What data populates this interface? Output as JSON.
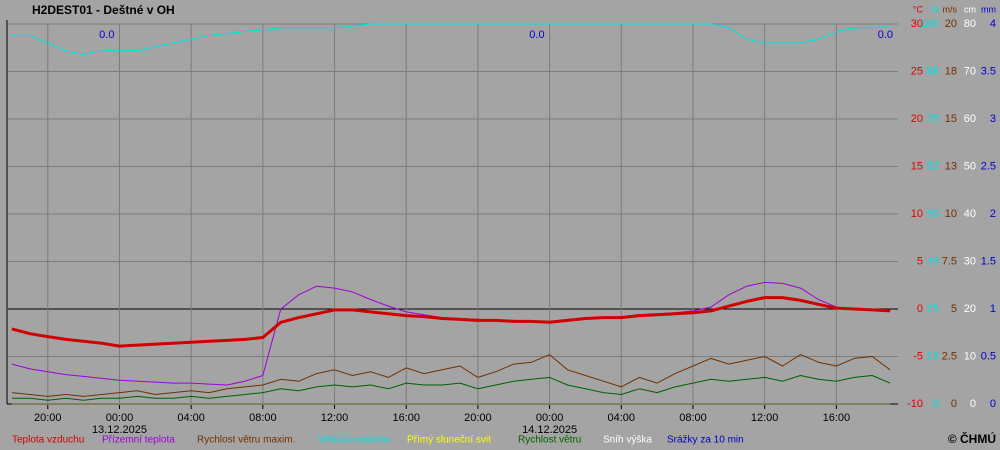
{
  "chart_data": {
    "type": "line",
    "title": "H2DEST01 - Deštné v OH",
    "xlim": [
      -6.22,
      43.44
    ],
    "xticks": [
      {
        "value": -4,
        "label": "20:00"
      },
      {
        "value": 0,
        "label": "00:00"
      },
      {
        "value": 4,
        "label": "04:00"
      },
      {
        "value": 8,
        "label": "08:00"
      },
      {
        "value": 12,
        "label": "12:00"
      },
      {
        "value": 16,
        "label": "16:00"
      },
      {
        "value": 20,
        "label": "20:00"
      },
      {
        "value": 24,
        "label": "00:00"
      },
      {
        "value": 28,
        "label": "04:00"
      },
      {
        "value": 32,
        "label": "08:00"
      },
      {
        "value": 36,
        "label": "12:00"
      },
      {
        "value": 40,
        "label": "16:00"
      }
    ],
    "date_labels": [
      {
        "value": 0,
        "label": "13.12.2025"
      },
      {
        "value": 24,
        "label": "14.12.2025"
      }
    ],
    "axes": [
      {
        "unit": "°C",
        "color": "#e00000",
        "lim": [
          -10,
          30
        ],
        "ticks": [
          30,
          25,
          20,
          15,
          10,
          5,
          0,
          -5,
          -10
        ]
      },
      {
        "unit": "%",
        "color": "#00e0e0",
        "lim": [
          0,
          100
        ],
        "ticks": [
          100,
          {
            "value": 87.5,
            "label": "88"
          },
          75,
          {
            "value": 62.5,
            "label": "63"
          },
          50,
          {
            "value": 37.5,
            "label": "38"
          },
          25,
          {
            "value": 12.5,
            "label": "13"
          },
          0
        ]
      },
      {
        "unit": "m/s",
        "color": "#703000",
        "lim": [
          0,
          20
        ],
        "ticks": [
          20,
          {
            "value": 17.5,
            "label": "18"
          },
          15,
          {
            "value": 12.5,
            "label": "13"
          },
          10,
          7.5,
          5,
          2.5,
          0
        ]
      },
      {
        "unit": "cm",
        "color": "#ffffff",
        "lim": [
          0,
          80
        ],
        "ticks": [
          80,
          70,
          60,
          50,
          40,
          30,
          20,
          10,
          0
        ]
      },
      {
        "unit": "mm",
        "color": "#0000d0",
        "lim": [
          0,
          4
        ],
        "ticks": [
          4,
          3.5,
          3,
          2.5,
          2,
          1.5,
          1,
          0.5,
          0
        ]
      }
    ],
    "x": [
      -6,
      -5,
      -4,
      -3,
      -2,
      -1,
      0,
      1,
      2,
      3,
      4,
      5,
      6,
      7,
      8,
      9,
      10,
      11,
      12,
      13,
      14,
      15,
      16,
      17,
      18,
      19,
      20,
      21,
      22,
      23,
      24,
      25,
      26,
      27,
      28,
      29,
      30,
      31,
      32,
      33,
      34,
      35,
      36,
      37,
      38,
      39,
      40,
      41,
      42,
      43
    ],
    "series": [
      {
        "name": "Teplota vzduchu",
        "color": "#d00000",
        "axis": 0,
        "width": 3,
        "values": [
          -2.1,
          -2.6,
          -2.9,
          -3.2,
          -3.4,
          -3.6,
          -3.9,
          -3.8,
          -3.7,
          -3.6,
          -3.5,
          -3.4,
          -3.3,
          -3.2,
          -3.0,
          -1.4,
          -0.9,
          -0.5,
          -0.1,
          -0.1,
          -0.3,
          -0.5,
          -0.7,
          -0.8,
          -1.0,
          -1.1,
          -1.2,
          -1.2,
          -1.3,
          -1.3,
          -1.4,
          -1.2,
          -1.0,
          -0.9,
          -0.9,
          -0.7,
          -0.6,
          -0.5,
          -0.4,
          -0.2,
          0.3,
          0.8,
          1.2,
          1.2,
          0.9,
          0.5,
          0.1,
          0.0,
          -0.1,
          -0.2
        ]
      },
      {
        "name": "Přízemní teplota",
        "color": "#a000d8",
        "axis": 0,
        "width": 1,
        "values": [
          -5.8,
          -6.3,
          -6.6,
          -6.9,
          -7.1,
          -7.3,
          -7.5,
          -7.6,
          -7.7,
          -7.8,
          -7.8,
          -7.9,
          -8.0,
          -7.6,
          -7.0,
          0.0,
          1.5,
          2.4,
          2.2,
          1.8,
          1.0,
          0.3,
          -0.3,
          -0.6,
          -0.9,
          -1.0,
          -1.1,
          -1.2,
          -1.2,
          -1.3,
          -1.3,
          -1.1,
          -1.0,
          -0.9,
          -0.8,
          -0.6,
          -0.5,
          -0.4,
          -0.2,
          0.2,
          1.5,
          2.4,
          2.8,
          2.7,
          2.2,
          1.0,
          0.2,
          0.0,
          -0.1,
          -0.2
        ]
      },
      {
        "name": "Rychlost větru maxim.",
        "color": "#703000",
        "axis": 2,
        "width": 1,
        "values": [
          0.6,
          0.5,
          0.4,
          0.5,
          0.4,
          0.5,
          0.6,
          0.7,
          0.5,
          0.6,
          0.7,
          0.6,
          0.8,
          0.9,
          1.0,
          1.3,
          1.2,
          1.6,
          1.8,
          1.5,
          1.7,
          1.4,
          1.9,
          1.6,
          1.8,
          2.0,
          1.4,
          1.7,
          2.1,
          2.2,
          2.6,
          1.8,
          1.5,
          1.2,
          0.9,
          1.4,
          1.1,
          1.6,
          2.0,
          2.4,
          2.1,
          2.3,
          2.5,
          2.0,
          2.6,
          2.2,
          2.0,
          2.4,
          2.5,
          1.8
        ]
      },
      {
        "name": "Vlhkost vzduchu",
        "color": "#00e0e0",
        "axis": 1,
        "width": 1,
        "values": [
          97,
          97,
          95,
          93,
          92,
          93,
          93,
          93,
          94,
          95,
          96,
          97,
          97.5,
          98,
          98.5,
          99,
          99,
          99,
          99,
          99.5,
          100,
          100,
          100,
          100,
          100,
          100,
          100,
          100,
          100,
          100,
          100,
          100,
          100,
          100,
          100,
          100,
          100,
          100,
          100,
          100,
          99,
          96,
          95,
          95,
          95,
          96,
          98,
          99,
          99,
          99.5
        ]
      },
      {
        "name": "Přímý sluneční svit",
        "color": "#ffff00",
        "axis": 1,
        "width": 1,
        "values": [
          0,
          0,
          0,
          0,
          0,
          0,
          0,
          0,
          0,
          0,
          0,
          0,
          0,
          0,
          0,
          0,
          0,
          0,
          0,
          0,
          0,
          0,
          0,
          0,
          0,
          0,
          0,
          0,
          0,
          0,
          0,
          0,
          0,
          0,
          0,
          0,
          0,
          0,
          0,
          0,
          0,
          0,
          0,
          0,
          0,
          0,
          0,
          0,
          0,
          0
        ]
      },
      {
        "name": "Rychlost větru",
        "color": "#006000",
        "axis": 2,
        "width": 1,
        "values": [
          0.3,
          0.3,
          0.2,
          0.3,
          0.2,
          0.3,
          0.3,
          0.4,
          0.3,
          0.3,
          0.4,
          0.3,
          0.4,
          0.5,
          0.6,
          0.8,
          0.7,
          0.9,
          1.0,
          0.9,
          1.0,
          0.8,
          1.1,
          1.0,
          1.0,
          1.1,
          0.8,
          1.0,
          1.2,
          1.3,
          1.4,
          1.0,
          0.8,
          0.6,
          0.5,
          0.8,
          0.6,
          0.9,
          1.1,
          1.3,
          1.2,
          1.3,
          1.4,
          1.2,
          1.5,
          1.3,
          1.2,
          1.4,
          1.5,
          1.1
        ]
      },
      {
        "name": "Sníh výška",
        "color": "#ffffff",
        "axis": 3,
        "width": 1,
        "values": [
          0,
          0,
          0,
          0,
          0,
          0,
          0,
          0,
          0,
          0,
          0,
          0,
          0,
          0,
          0,
          0,
          0,
          0,
          0,
          0,
          0,
          0,
          0,
          0,
          0,
          0,
          0,
          0,
          0,
          0,
          0,
          0,
          0,
          0,
          0,
          0,
          0,
          0,
          0,
          0,
          0,
          0,
          0,
          0,
          0,
          0,
          0,
          0,
          0,
          0
        ]
      },
      {
        "name": "Srážky za 10 min",
        "color": "#0000c0",
        "axis": 4,
        "width": 2,
        "values": [
          0,
          0,
          0,
          0,
          0,
          0,
          0,
          0,
          0,
          0,
          0,
          0,
          0,
          0,
          0,
          0,
          0,
          0,
          0,
          0,
          0,
          0,
          0,
          0,
          0,
          0,
          0,
          0,
          0,
          0,
          0,
          0,
          0,
          0,
          0,
          0,
          0,
          0,
          0,
          0,
          0,
          0,
          0,
          0,
          0,
          0,
          0,
          0,
          0,
          0
        ]
      }
    ],
    "daily_precip": {
      "x": [
        0,
        24,
        43.44
      ],
      "values": [
        0,
        0,
        0
      ],
      "value_labels": [
        "0.0",
        "0.0",
        "0.0"
      ],
      "color": "#0000d0"
    },
    "copyright": "© ČHMÚ"
  }
}
